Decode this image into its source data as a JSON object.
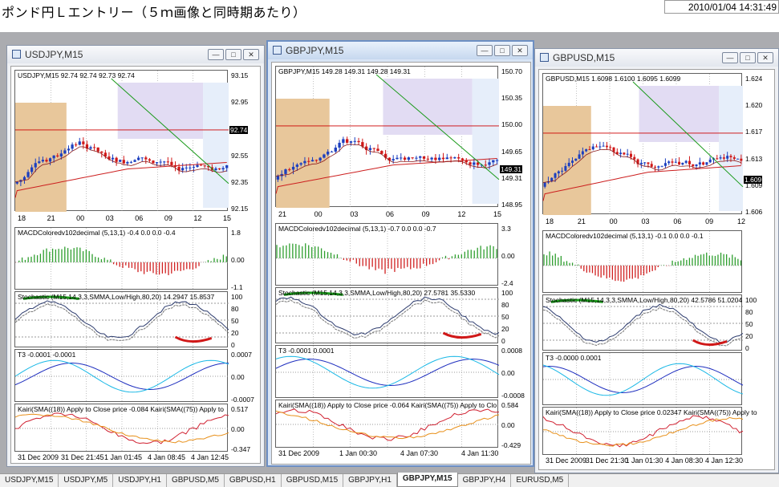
{
  "header": {
    "title": "ポンド円Ｌエントリー（５ｍ画像と同時期あたり）",
    "clock": "2010/01/04 14:31:49"
  },
  "windows": [
    {
      "title": "USDJPY,M15",
      "info": "USDJPY,M15  92.74 92.74 92.73 92.74",
      "price_scale": [
        "93.15",
        "92.95",
        "92.74",
        "92.55",
        "92.35",
        "92.15"
      ],
      "current": "92.74",
      "upper_x": [
        "18",
        "21",
        "00",
        "03",
        "06",
        "09",
        "12",
        "15"
      ],
      "macd": "MACDColoredv102decimal (5,13,1) -0.4 0.0 0.0 -0.4",
      "macd_scale": [
        "1.8",
        "0.00",
        "-1.1"
      ],
      "stoch": "Stochastic (M15,14,3,3,SMMA,Low/High,80,20) 14.2947 15.8537",
      "stoch_scale": [
        "100",
        "80",
        "50",
        "20",
        "0"
      ],
      "t3": "T3 -0.0001 -0.0001",
      "t3_scale": [
        "0.0007",
        "0.00",
        "-0.0007"
      ],
      "kairi": "Kairi(SMA((18)) Apply to Close price -0.084  Kairi(SMA((75)) Apply to",
      "kairi_scale": [
        "0.517",
        "0.00",
        "-0.347"
      ],
      "dates": [
        "31 Dec 2009",
        "31 Dec 21:45",
        "1 Jan 01:45",
        "4 Jan 08:45",
        "4 Jan 12:45"
      ]
    },
    {
      "title": "GBPJPY,M15",
      "info": "GBPJPY,M15  149.28 149.31 149.28 149.31",
      "price_scale": [
        "150.70",
        "150.35",
        "150.00",
        "149.65",
        "149.31",
        "148.95"
      ],
      "current": "149.31",
      "upper_x": [
        "21",
        "00",
        "03",
        "06",
        "09",
        "12",
        "15"
      ],
      "macd": "MACDColoredv102decimal (5,13,1) -0.7 0.0 0.0 -0.7",
      "macd_scale": [
        "3.3",
        "0.00",
        "-2.4"
      ],
      "stoch": "Stochastic (M15,14,3,3,SMMA,Low/High,80,20) 27.5781 35.5330",
      "stoch_scale": [
        "100",
        "80",
        "50",
        "20",
        "0"
      ],
      "t3": "T3 -0.0001 0.0001",
      "t3_scale": [
        "0.0008",
        "0.00",
        "-0.0008"
      ],
      "kairi": "Kairi(SMA((18)) Apply to Close price -0.064  Kairi(SMA((75)) Apply to Clo",
      "kairi_scale": [
        "0.584",
        "0.00",
        "-0.429"
      ],
      "dates": [
        "31 Dec 2009",
        "1 Jan 00:30",
        "4 Jan 07:30",
        "4 Jan 11:30"
      ]
    },
    {
      "title": "GBPUSD,M15",
      "info": "GBPUSD,M15  1.6098 1.6100 1.6095 1.6099",
      "price_scale": [
        "1.624",
        "1.620",
        "1.617",
        "1.613",
        "1.609",
        "1.606"
      ],
      "current": "1.609",
      "upper_x": [
        "18",
        "21",
        "00",
        "03",
        "06",
        "09",
        "12"
      ],
      "macd": "MACDColoredv102decimal (5,13,1) -0.1 0.0 0.0 -0.1",
      "macd_scale": [],
      "stoch": "Stochastic (M15,14,3,3,SMMA,Low/High,80,20) 42.5786 51.0204",
      "stoch_scale": [
        "100",
        "80",
        "50",
        "20",
        "0"
      ],
      "t3": "T3 -0.0000 0.0001",
      "t3_scale": [],
      "kairi": "Kairi(SMA((18)) Apply to Close price 0.02347  Kairi(SMA((75)) Apply to",
      "kairi_scale": [],
      "dates": [
        "31 Dec 2009",
        "31 Dec 21:30",
        "1 Jan 01:30",
        "4 Jan 08:30",
        "4 Jan 12:30"
      ]
    }
  ],
  "tabs": [
    "USDJPY,M15",
    "USDJPY,M5",
    "USDJPY,H1",
    "GBPUSD,M5",
    "GBPUSD,H1",
    "GBPUSD,M15",
    "GBPJPY,H1",
    "GBPJPY,M15",
    "GBPJPY,H4",
    "EURUSD,M5"
  ],
  "active_tab": "GBPJPY,M15",
  "colors": {
    "bull": "#1c3fbf",
    "bear": "#d01818",
    "macd_up": "#2e9e2e",
    "macd_dn": "#d02020",
    "ma_red": "#cc1f1f",
    "ma_green": "#1a9a1a",
    "zone_orange": "#e8c79b",
    "zone_purple": "#e2dcf3",
    "zone_blue": "#e6eefa"
  }
}
